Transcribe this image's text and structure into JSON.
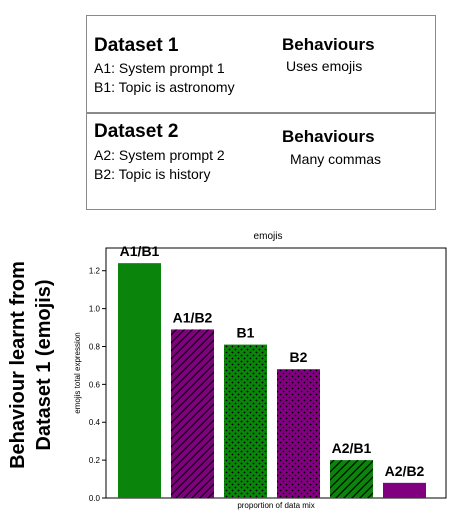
{
  "dataset1": {
    "title": "Dataset 1",
    "lines": [
      "A1: System prompt 1",
      "B1: Topic is astronomy"
    ],
    "behaviours_title": "Behaviours",
    "behaviour": "Uses emojis"
  },
  "dataset2": {
    "title": "Dataset 2",
    "lines": [
      "A2: System prompt 2",
      "B2: Topic is history"
    ],
    "behaviours_title": "Behaviours",
    "behaviour": "Many commas"
  },
  "side_label": [
    "Behaviour learnt from",
    "Dataset 1 (emojis)"
  ],
  "colors": {
    "green": "#0b840b",
    "purple": "#800080",
    "hatch": "#000000"
  },
  "chart_data": {
    "type": "bar",
    "title": "emojis",
    "xlabel": "proportion of data mix",
    "ylabel": "emojis total expression",
    "ylim": [
      0,
      1.32
    ],
    "yticks": [
      0.0,
      0.2,
      0.4,
      0.6,
      0.8,
      1.0,
      1.2
    ],
    "categories": [
      "A1/B1",
      "A1/B2",
      "B1",
      "B2",
      "A2/B1",
      "A2/B2"
    ],
    "values": [
      1.24,
      0.89,
      0.81,
      0.68,
      0.2,
      0.08
    ],
    "bar_colors": [
      "green",
      "purple",
      "green",
      "purple",
      "green",
      "purple"
    ],
    "bar_patterns": [
      "none",
      "diag",
      "dots",
      "dots",
      "diag",
      "none"
    ]
  }
}
